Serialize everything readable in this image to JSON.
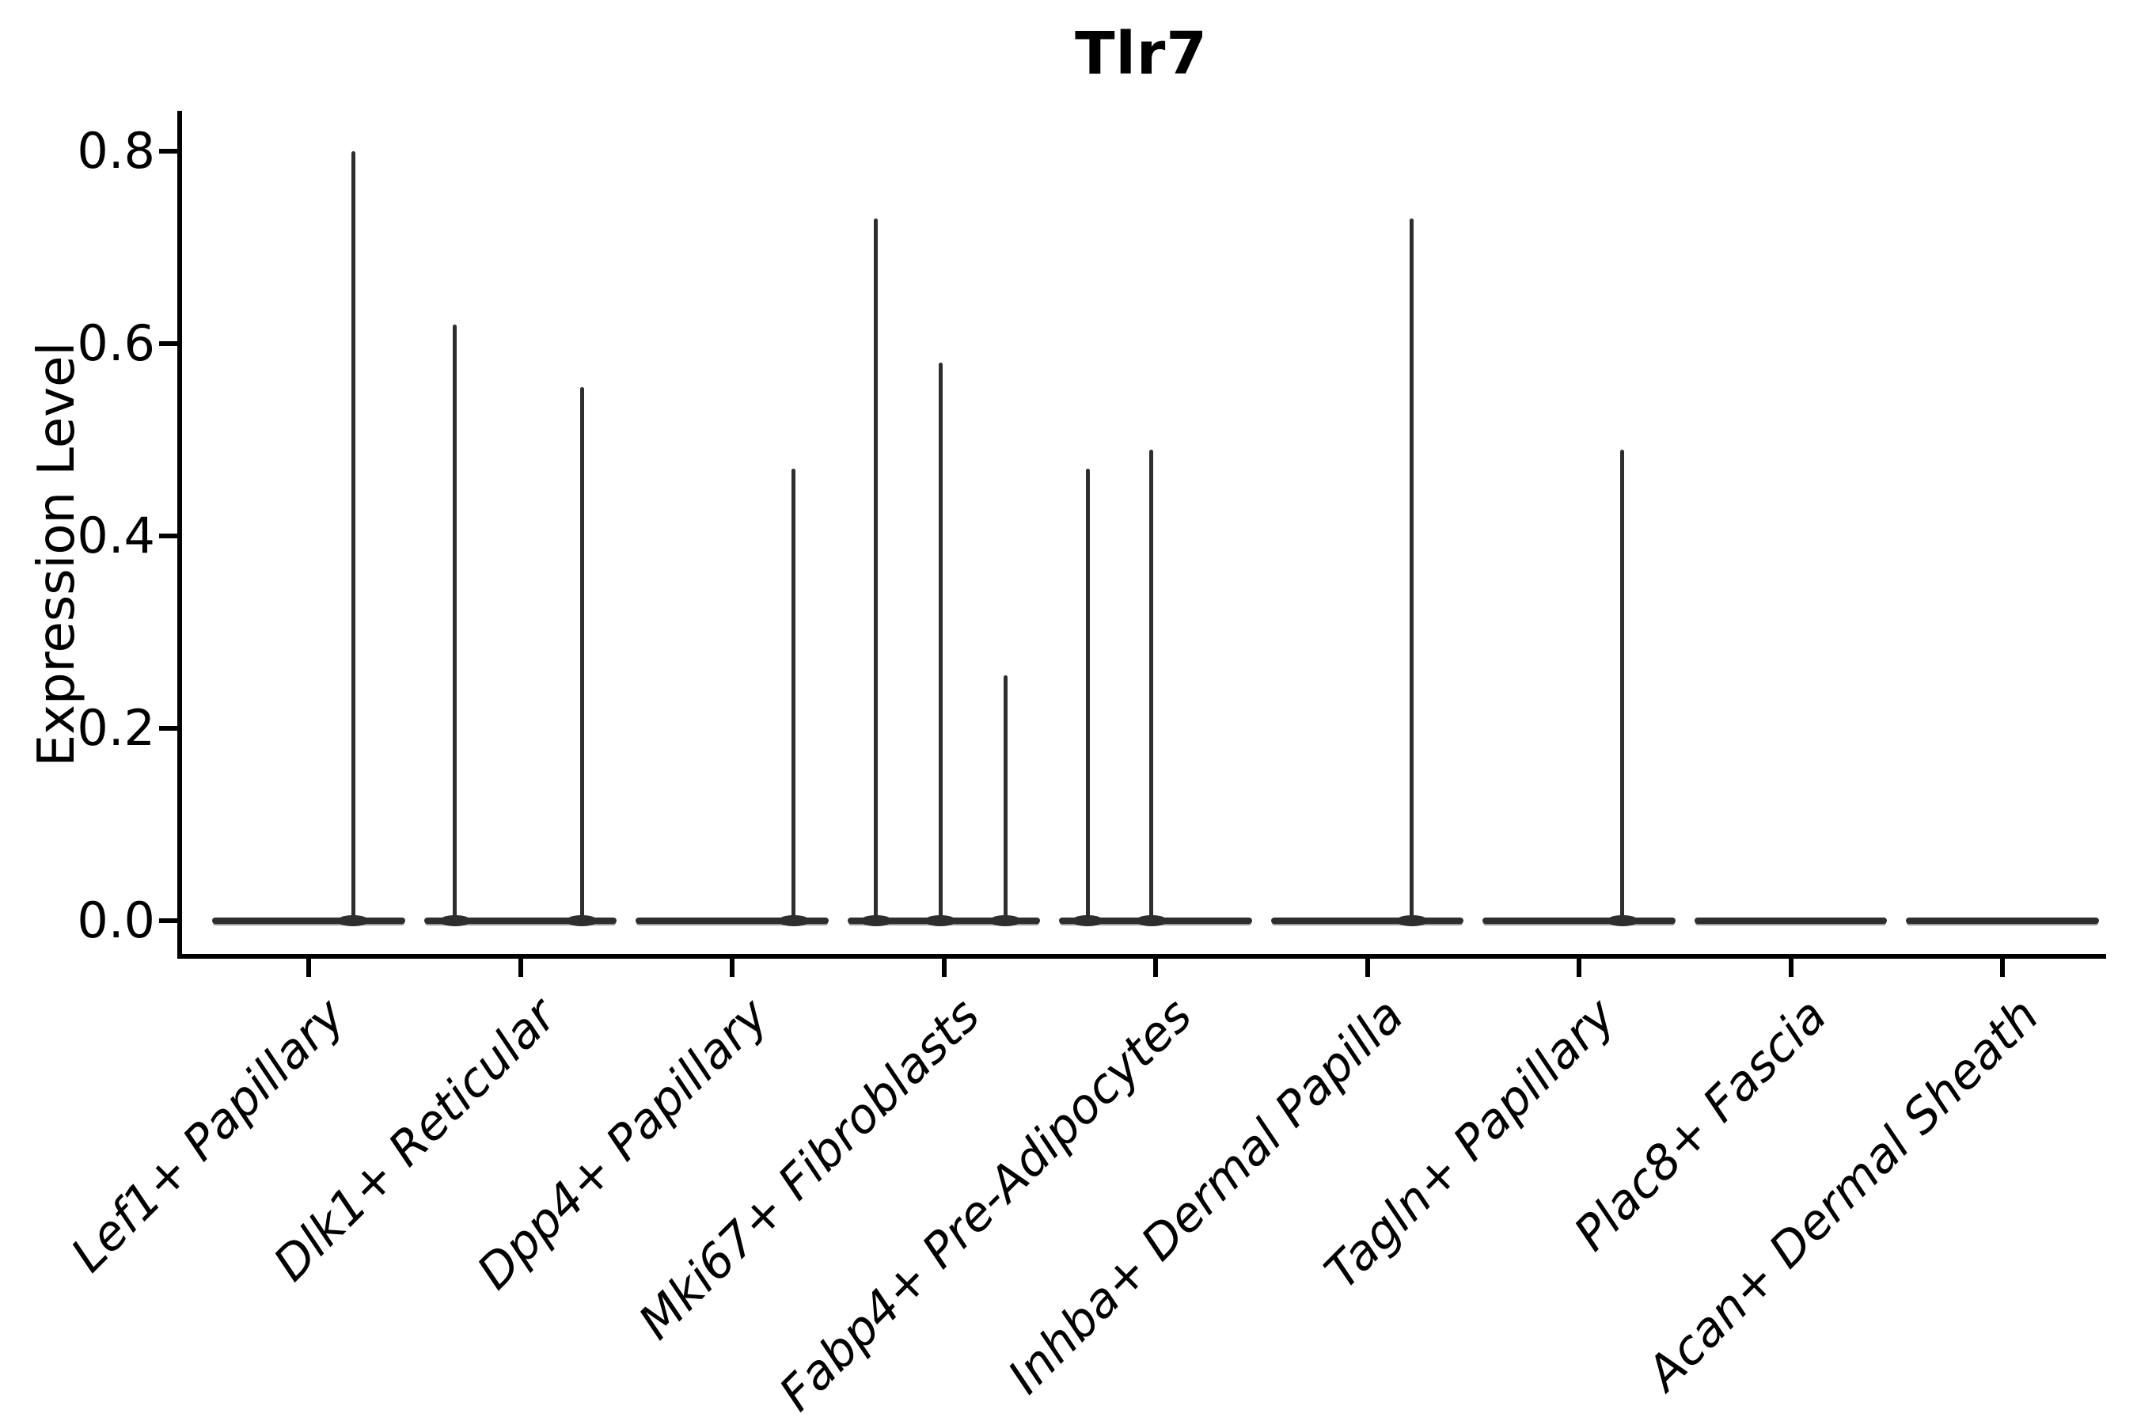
{
  "figure": {
    "title": "Tlr7"
  },
  "axes": {
    "ylabel": "Expression Level",
    "ytick_labels": [
      "0.0",
      "0.2",
      "0.4",
      "0.6",
      "0.8"
    ],
    "xtick_rotation_deg": 45,
    "spines": [
      "left",
      "bottom"
    ]
  },
  "chart_data": {
    "type": "violin",
    "title": "Tlr7",
    "xlabel": "",
    "ylabel": "Expression Level",
    "ylim": [
      -0.04,
      0.84
    ],
    "yticks": [
      0.0,
      0.2,
      0.4,
      0.6,
      0.8
    ],
    "grid": false,
    "legend_position": "none",
    "categories": [
      "Lef1+ Papillary",
      "Dlk1+ Reticular",
      "Dpp4+ Papillary",
      "Mki67+ Fibroblasts",
      "Fabp4+ Pre-Adipocytes",
      "Inhba+ Dermal Papilla",
      "Tagln+ Papillary",
      "Plac8+ Fascia",
      "Acan+ Dermal Sheath"
    ],
    "description": "Each category shows a flat violin body at expression 0 with thin vertical tails rising to the maximum expression values listed as spikes (dx = horizontal offset from category center, in fraction of category spacing).",
    "baseline_value": 0.0,
    "violin_halfwidth_frac": 0.456,
    "violins": [
      {
        "category": "Lef1+ Papillary",
        "spikes": [
          {
            "dx": 0.21,
            "max": 0.8
          }
        ]
      },
      {
        "category": "Dlk1+ Reticular",
        "spikes": [
          {
            "dx": -0.31,
            "max": 0.62
          },
          {
            "dx": 0.29,
            "max": 0.555
          }
        ]
      },
      {
        "category": "Dpp4+ Papillary",
        "spikes": [
          {
            "dx": 0.29,
            "max": 0.47
          }
        ]
      },
      {
        "category": "Mki67+ Fibroblasts",
        "spikes": [
          {
            "dx": -0.32,
            "max": 0.73
          },
          {
            "dx": -0.015,
            "max": 0.58
          },
          {
            "dx": 0.29,
            "max": 0.255
          }
        ]
      },
      {
        "category": "Fabp4+ Pre-Adipocytes",
        "spikes": [
          {
            "dx": -0.32,
            "max": 0.47
          },
          {
            "dx": -0.02,
            "max": 0.49
          }
        ]
      },
      {
        "category": "Inhba+ Dermal Papilla",
        "spikes": [
          {
            "dx": 0.21,
            "max": 0.73
          }
        ]
      },
      {
        "category": "Tagln+ Papillary",
        "spikes": [
          {
            "dx": 0.205,
            "max": 0.49
          }
        ]
      },
      {
        "category": "Plac8+ Fascia",
        "spikes": []
      },
      {
        "category": "Acan+ Dermal Sheath",
        "spikes": []
      }
    ]
  },
  "colors": {
    "ink": "#000000",
    "violin": "#2e2e2e",
    "background": "#ffffff"
  }
}
